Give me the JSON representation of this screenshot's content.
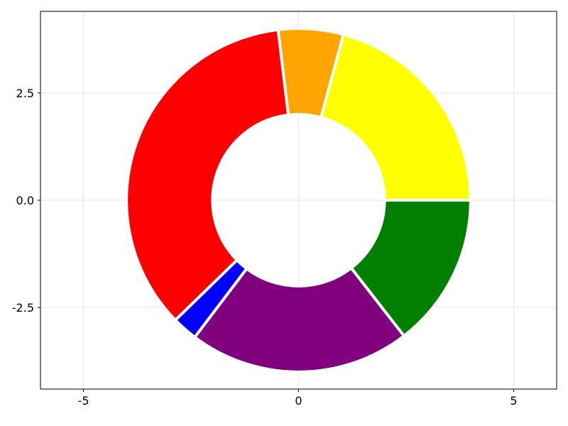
{
  "chart_data": {
    "type": "pie",
    "style": "donut",
    "inner_radius": 2.0,
    "outer_radius": 4.0,
    "xlim": [
      -6,
      6
    ],
    "ylim": [
      -4.4,
      4.4
    ],
    "xticks": [
      -5,
      0,
      5
    ],
    "x_tick_labels": [
      "-5",
      "0",
      "5"
    ],
    "yticks": [
      -2.5,
      0,
      2.5
    ],
    "y_tick_labels": [
      "-2.5",
      "0.0",
      "2.5"
    ],
    "grid": true,
    "slices": [
      {
        "color": "#FFFF00",
        "value": 0.208
      },
      {
        "color": "#FFA500",
        "value": 0.061
      },
      {
        "color": "#FF0000",
        "value": 0.354
      },
      {
        "color": "#0000FF",
        "value": 0.024
      },
      {
        "color": "#800080",
        "value": 0.208
      },
      {
        "color": "#008000",
        "value": 0.145
      }
    ],
    "start_angle_deg": 0,
    "direction": "counterclockwise",
    "slice_border_color": "#FFFFFF"
  }
}
